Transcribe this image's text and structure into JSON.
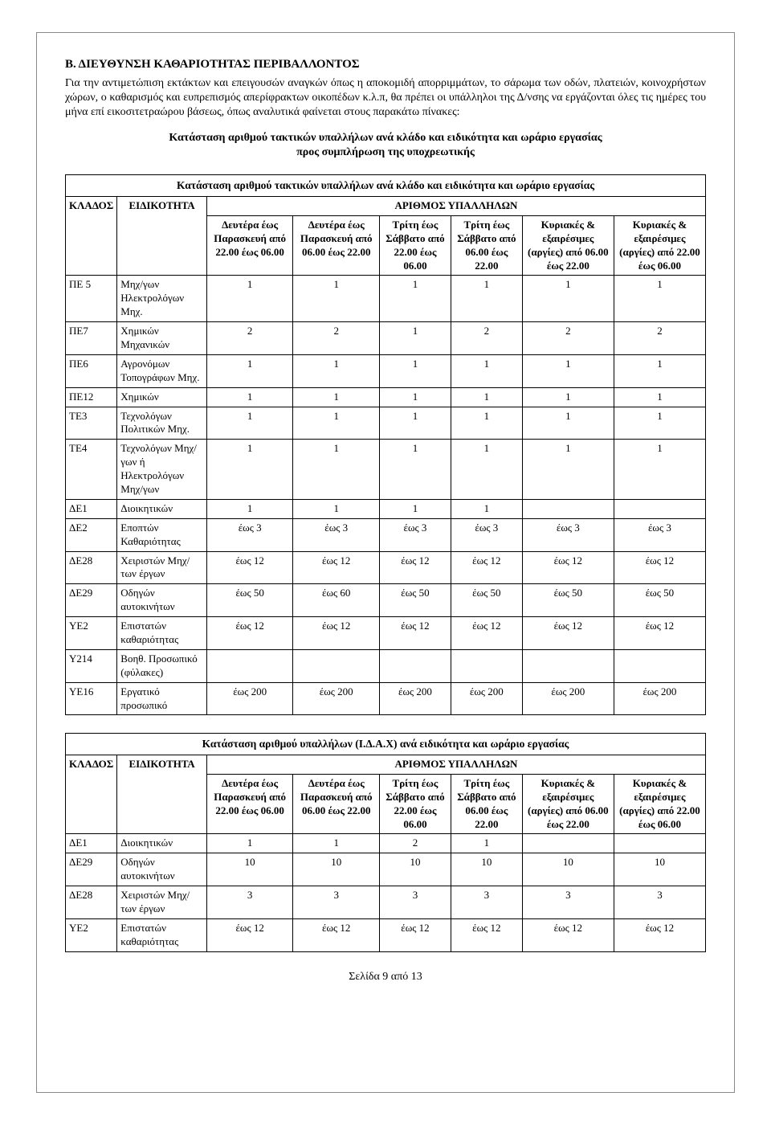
{
  "heading": "Β. ΔΙΕΥΘΥΝΣΗ ΚΑΘΑΡΙΟΤΗΤΑΣ ΠΕΡΙΒΑΛΛΟΝΤΟΣ",
  "paragraph": "Για την αντιμετώπιση εκτάκτων και επειγουσών αναγκών όπως η αποκομιδή απορριμμάτων, το σάρωμα των οδών, πλατειών, κοινοχρήστων χώρων, ο καθαρισμός και ευπρεπισμός απερίφρακτων οικοπέδων κ.λ.π, θα πρέπει οι υπάλληλοι της Δ/νσης να εργάζονται όλες τις ημέρες του μήνα επί εικοσιτετραώρου βάσεως, όπως αναλυτικά φαίνεται στους παρακάτω πίνακες:",
  "subtitle_line1": "Κατάσταση αριθμού τακτικών υπαλλήλων ανά κλάδο και ειδικότητα και ωράριο εργασίας",
  "subtitle_line2": "προς συμπλήρωση της υποχρεωτικής",
  "table1": {
    "caption": "Κατάσταση αριθμού τακτικών  υπαλλήλων ανά κλάδο και ειδικότητα και ωράριο εργασίας",
    "header_klados": "ΚΛΑΔΟΣ",
    "header_eidikotita": "ΕΙΔΙΚΟΤΗΤΑ",
    "header_arithmos": "ΑΡΙΘΜΟΣ ΥΠΑΛΛΗΛΩΝ",
    "cols": [
      "Δευτέρα έως Παρασκευή από 22.00 έως 06.00",
      "Δευτέρα έως Παρασκευή από 06.00 έως 22.00",
      "Τρίτη έως Σάββατο από 22.00 έως 06.00",
      "Τρίτη έως Σάββατο από 06.00 έως 22.00",
      "Κυριακές & εξαιρέσιμες (αργίες) από 06.00 έως 22.00",
      "Κυριακές & εξαιρέσιμες (αργίες) από 22.00 έως 06.00"
    ],
    "rows": [
      {
        "k": "ΠΕ 5",
        "e": "Μηχ/γων Ηλεκτρολόγων Μηχ.",
        "v": [
          "1",
          "1",
          "1",
          "1",
          "1",
          "1"
        ]
      },
      {
        "k": "ΠΕ7",
        "e": "Χημικών Μηχανικών",
        "v": [
          "2",
          "2",
          "1",
          "2",
          "2",
          "2"
        ]
      },
      {
        "k": "ΠΕ6",
        "e": "Αγρονόμων Τοπογράφων Μηχ.",
        "v": [
          "1",
          "1",
          "1",
          "1",
          "1",
          "1"
        ]
      },
      {
        "k": "ΠΕ12",
        "e": "Χημικών",
        "v": [
          "1",
          "1",
          "1",
          "1",
          "1",
          "1"
        ]
      },
      {
        "k": "ΤΕ3",
        "e": "Τεχνολόγων Πολιτικών Μηχ.",
        "v": [
          "1",
          "1",
          "1",
          "1",
          "1",
          "1"
        ]
      },
      {
        "k": "ΤΕ4",
        "e": "Τεχνολόγων Μηχ/γων ή Ηλεκτρολόγων Μηχ/γων",
        "v": [
          "1",
          "1",
          "1",
          "1",
          "1",
          "1"
        ]
      },
      {
        "k": "ΔΕ1",
        "e": "Διοικητικών",
        "v": [
          "1",
          "1",
          "1",
          "1",
          "",
          ""
        ]
      },
      {
        "k": "ΔΕ2",
        "e": "Εποπτών Καθαριότητας",
        "v": [
          "έως  3",
          "έως  3",
          "έως  3",
          "έως  3",
          "έως  3",
          "έως  3"
        ]
      },
      {
        "k": "ΔΕ28",
        "e": "Χειριστών Μηχ/των έργων",
        "v": [
          "έως  12",
          "έως  12",
          "έως  12",
          "έως  12",
          "έως  12",
          "έως  12"
        ]
      },
      {
        "k": "ΔΕ29",
        "e": "Οδηγών αυτοκινήτων",
        "v": [
          "έως  50",
          "έως  60",
          "έως  50",
          "έως  50",
          "έως  50",
          "έως  50"
        ]
      },
      {
        "k": "ΥΕ2",
        "e": "Επιστατών καθαριότητας",
        "v": [
          "έως  12",
          "έως  12",
          "έως  12",
          "έως  12",
          "έως  12",
          "έως  12"
        ]
      },
      {
        "k": "Υ214",
        "e": "Βοηθ. Προσωπικό (φύλακες)",
        "v": [
          "",
          "",
          "",
          "",
          "",
          ""
        ]
      },
      {
        "k": "ΥΕ16",
        "e": "Εργατικό προσωπικό",
        "v": [
          "έως  200",
          "έως  200",
          "έως  200",
          "έως  200",
          "έως  200",
          "έως  200"
        ]
      }
    ]
  },
  "table2": {
    "caption": "Κατάσταση αριθμού  υπαλλήλων (Ι.Δ.Α.Χ) ανά ειδικότητα και ωράριο εργασίας",
    "header_klados": "ΚΛΑΔΟΣ",
    "header_eidikotita": "ΕΙΔΙΚΟΤΗΤΑ",
    "header_arithmos": "ΑΡΙΘΜΟΣ ΥΠΑΛΛΗΛΩΝ",
    "cols": [
      "Δευτέρα έως Παρασκευή από 22.00 έως 06.00",
      "Δευτέρα έως Παρασκευή από 06.00 έως 22.00",
      "Τρίτη έως Σάββατο από 22.00 έως 06.00",
      "Τρίτη έως Σάββατο από 06.00 έως 22.00",
      "Κυριακές & εξαιρέσιμες (αργίες) από 06.00 έως 22.00",
      "Κυριακές & εξαιρέσιμες (αργίες) από 22.00 έως 06.00"
    ],
    "rows": [
      {
        "k": "ΔΕ1",
        "e": "Διοικητικών",
        "v": [
          "1",
          "1",
          "2",
          "1",
          "",
          ""
        ]
      },
      {
        "k": "ΔΕ29",
        "e": "Οδηγών αυτοκινήτων",
        "v": [
          "10",
          "10",
          "10",
          "10",
          "10",
          "10"
        ]
      },
      {
        "k": "ΔΕ28",
        "e": "Χειριστών Μηχ/των έργων",
        "v": [
          "3",
          "3",
          "3",
          "3",
          "3",
          "3"
        ]
      },
      {
        "k": "ΥΕ2",
        "e": "Επιστατών καθαριότητας",
        "v": [
          "έως  12",
          "έως  12",
          "έως  12",
          "έως  12",
          "έως  12",
          "έως  12"
        ]
      }
    ]
  },
  "footer": "Σελίδα 9 από 13"
}
